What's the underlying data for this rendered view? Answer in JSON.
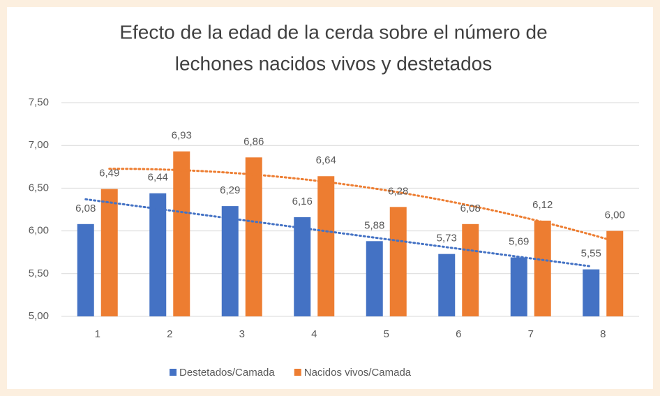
{
  "chart_data": {
    "type": "bar",
    "title": [
      "Efecto de la edad de la cerda sobre el número de",
      "lechones nacidos vivos y destetados"
    ],
    "categories": [
      "1",
      "2",
      "3",
      "4",
      "5",
      "6",
      "7",
      "8"
    ],
    "series": [
      {
        "name": "Destetados/Camada",
        "color": "#4472c4",
        "trendline": "linear",
        "values": [
          6.08,
          6.44,
          6.29,
          6.16,
          5.88,
          5.73,
          5.69,
          5.55
        ],
        "value_labels": [
          "6,08",
          "6,44",
          "6,29",
          "6,16",
          "5,88",
          "5,73",
          "5,69",
          "5,55"
        ]
      },
      {
        "name": "Nacidos vivos/Camada",
        "color": "#ed7d31",
        "trendline": "polynomial",
        "values": [
          6.49,
          6.93,
          6.86,
          6.64,
          6.28,
          6.08,
          6.12,
          6.0
        ],
        "value_labels": [
          "6,49",
          "6,93",
          "6,86",
          "6,64",
          "6,28",
          "6,08",
          "6,12",
          "6,00"
        ]
      }
    ],
    "ylim": [
      5,
      7.5
    ],
    "yticks": [
      {
        "value": 5,
        "label": "5,00"
      },
      {
        "value": 5.5,
        "label": "5,50"
      },
      {
        "value": 6,
        "label": "6,00"
      },
      {
        "value": 6.5,
        "label": "6,50"
      },
      {
        "value": 7,
        "label": "7,00"
      },
      {
        "value": 7.5,
        "label": "7,50"
      }
    ],
    "grid": true,
    "legend": "bottom"
  }
}
